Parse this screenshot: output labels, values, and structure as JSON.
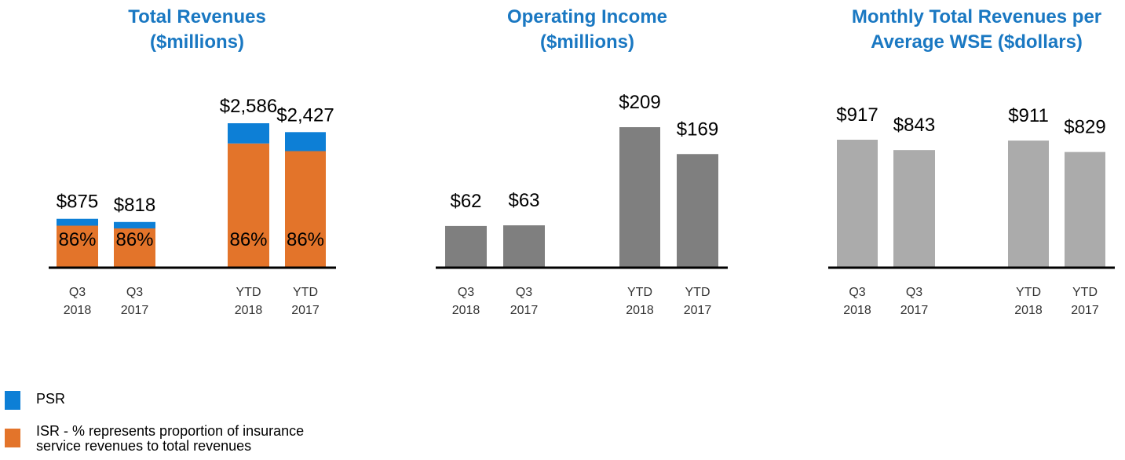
{
  "chart_data": [
    {
      "type": "bar",
      "title_lines": [
        "Total Revenues",
        "($millions)"
      ],
      "categories": [
        [
          "Q3",
          "2018"
        ],
        [
          "Q3",
          "2017"
        ],
        [
          "YTD",
          "2018"
        ],
        [
          "YTD",
          "2017"
        ]
      ],
      "series": [
        {
          "name": "ISR",
          "values": [
            752,
            703,
            2224,
            2087
          ],
          "color": "#e3742a"
        },
        {
          "name": "PSR",
          "values": [
            123,
            115,
            362,
            340
          ],
          "color": "#0d7fd6"
        }
      ],
      "totals": [
        875,
        818,
        2586,
        2427
      ],
      "total_labels": [
        "$875",
        "$818",
        "$2,586",
        "$2,427"
      ],
      "inner_labels": [
        "86%",
        "86%",
        "86%",
        "86%"
      ],
      "ylim": [
        0,
        2586
      ]
    },
    {
      "type": "bar",
      "title_lines": [
        "Operating Income",
        "($millions)"
      ],
      "categories": [
        [
          "Q3",
          "2018"
        ],
        [
          "Q3",
          "2017"
        ],
        [
          "YTD",
          "2018"
        ],
        [
          "YTD",
          "2017"
        ]
      ],
      "values": [
        62,
        63,
        209,
        169
      ],
      "value_labels": [
        "$62",
        "$63",
        "$209",
        "$169"
      ],
      "color": "#7f7f7f",
      "ylim": [
        0,
        209
      ]
    },
    {
      "type": "bar",
      "title_lines": [
        "Monthly Total Revenues per",
        "Average WSE ($dollars)"
      ],
      "categories": [
        [
          "Q3",
          "2018"
        ],
        [
          "Q3",
          "2017"
        ],
        [
          "YTD",
          "2018"
        ],
        [
          "YTD",
          "2017"
        ]
      ],
      "values": [
        917,
        843,
        911,
        829
      ],
      "value_labels": [
        "$917",
        "$843",
        "$911",
        "$829"
      ],
      "color": "#ababab",
      "ylim": [
        0,
        917
      ]
    }
  ],
  "legend": [
    {
      "label": "PSR",
      "color": "#0d7fd6"
    },
    {
      "label": "ISR - % represents proportion of insurance service revenues to total revenues",
      "color": "#e3742a"
    }
  ]
}
